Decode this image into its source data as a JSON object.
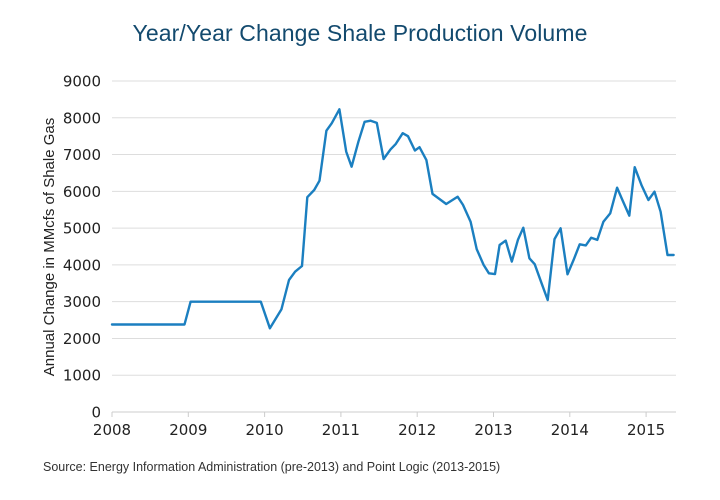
{
  "chart_data": {
    "type": "line",
    "title": "Year/Year Change Shale Production Volume",
    "xlabel": "",
    "ylabel": "Annual Change in MMcfs of Shale Gas",
    "source": "Source: Energy Information Administration (pre-2013) and Point Logic (2013-2015)",
    "xlim": [
      2008,
      2015.38
    ],
    "ylim": [
      0,
      9000
    ],
    "x_ticks": [
      "2008",
      "2009",
      "2010",
      "2011",
      "2012",
      "2013",
      "2014",
      "2015"
    ],
    "x_tick_values": [
      2008,
      2009,
      2010,
      2011,
      2012,
      2013,
      2014,
      2015
    ],
    "y_ticks": [
      "0",
      "1000",
      "2000",
      "3000",
      "4000",
      "5000",
      "6000",
      "7000",
      "8000",
      "9000"
    ],
    "y_tick_values": [
      0,
      1000,
      2000,
      3000,
      4000,
      5000,
      6000,
      7000,
      8000,
      9000
    ],
    "grid": true,
    "legend": "none",
    "color": "#1b7fc0",
    "series": [
      {
        "name": "Year/Year Change",
        "x": [
          2008.0,
          2008.95,
          2009.03,
          2009.95,
          2010.07,
          2010.22,
          2010.32,
          2010.4,
          2010.49,
          2010.56,
          2010.65,
          2010.72,
          2010.81,
          2010.88,
          2010.98,
          2011.07,
          2011.14,
          2011.23,
          2011.31,
          2011.39,
          2011.47,
          2011.56,
          2011.65,
          2011.72,
          2011.81,
          2011.88,
          2011.97,
          2012.03,
          2012.12,
          2012.2,
          2012.38,
          2012.53,
          2012.6,
          2012.7,
          2012.78,
          2012.87,
          2012.94,
          2013.02,
          2013.08,
          2013.16,
          2013.24,
          2013.32,
          2013.39,
          2013.47,
          2013.54,
          2013.63,
          2013.71,
          2013.8,
          2013.88,
          2013.97,
          2014.05,
          2014.13,
          2014.21,
          2014.28,
          2014.36,
          2014.44,
          2014.53,
          2014.62,
          2014.69,
          2014.78,
          2014.85,
          2014.94,
          2015.03,
          2015.11,
          2015.19,
          2015.28,
          2015.36
        ],
        "values": [
          2380,
          2380,
          3000,
          3000,
          2275,
          2790,
          3590,
          3815,
          3970,
          5840,
          6035,
          6290,
          7650,
          7850,
          8230,
          7080,
          6670,
          7350,
          7890,
          7920,
          7860,
          6880,
          7140,
          7290,
          7580,
          7500,
          7110,
          7200,
          6850,
          5930,
          5655,
          5855,
          5630,
          5175,
          4430,
          4000,
          3770,
          3750,
          4540,
          4660,
          4090,
          4680,
          5010,
          4180,
          4020,
          3500,
          3045,
          4700,
          4995,
          3745,
          4135,
          4560,
          4530,
          4740,
          4680,
          5175,
          5400,
          6100,
          5765,
          5340,
          6655,
          6170,
          5765,
          5990,
          5445,
          4270,
          4270
        ]
      }
    ]
  }
}
